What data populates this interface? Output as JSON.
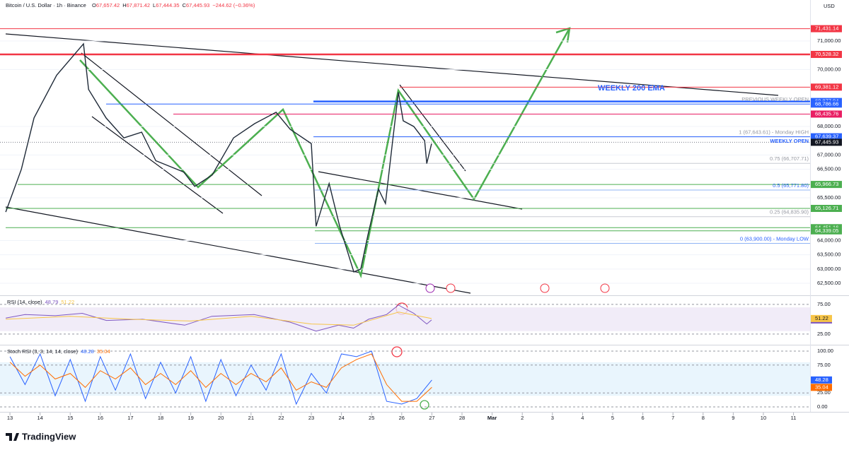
{
  "header": {
    "symbol": "Bitcoin / U.S. Dollar · 1h · Binance",
    "ohlc": [
      {
        "label": "O",
        "value": "67,657.42"
      },
      {
        "label": "H",
        "value": "67,871.42"
      },
      {
        "label": "L",
        "value": "67,444.35"
      },
      {
        "label": "C",
        "value": "67,445.93"
      }
    ],
    "change": "−244.62 (−0.36%)",
    "currency": "USD"
  },
  "chart_data": [
    {
      "type": "line",
      "x_labels": [
        {
          "value": 0,
          "label": "13"
        },
        {
          "value": 1,
          "label": "14"
        },
        {
          "value": 2,
          "label": "15"
        },
        {
          "value": 3,
          "label": "16"
        },
        {
          "value": 4,
          "label": "17"
        },
        {
          "value": 5,
          "label": "18"
        },
        {
          "value": 6,
          "label": "19"
        },
        {
          "value": 7,
          "label": "20"
        },
        {
          "value": 8,
          "label": "21"
        },
        {
          "value": 9,
          "label": "22"
        },
        {
          "value": 10,
          "label": "23"
        },
        {
          "value": 11,
          "label": "24"
        },
        {
          "value": 12,
          "label": "25"
        },
        {
          "value": 13,
          "label": "26"
        },
        {
          "value": 14,
          "label": "27"
        },
        {
          "value": 15,
          "label": "28"
        },
        {
          "value": 16,
          "label": "Mar"
        },
        {
          "value": 17,
          "label": "2"
        },
        {
          "value": 18,
          "label": "3"
        },
        {
          "value": 19,
          "label": "4"
        },
        {
          "value": 20,
          "label": "5"
        },
        {
          "value": 21,
          "label": "6"
        },
        {
          "value": 22,
          "label": "7"
        },
        {
          "value": 23,
          "label": "8"
        },
        {
          "value": 24,
          "label": "9"
        },
        {
          "value": 25,
          "label": "10"
        },
        {
          "value": 26,
          "label": "11"
        }
      ],
      "xlim": [
        -0.33,
        26.55
      ],
      "ylim": [
        62079,
        72437
      ],
      "yticks": [
        {
          "value": 71000,
          "label": "71,000.00"
        },
        {
          "value": 70000,
          "label": "70,000.00"
        },
        {
          "value": 68000,
          "label": "68,000.00"
        },
        {
          "value": 67000,
          "label": "67,000.00"
        },
        {
          "value": 66500,
          "label": "66,500.00"
        },
        {
          "value": 65500,
          "label": "65,500.00"
        },
        {
          "value": 64000,
          "label": "64,000.00"
        },
        {
          "value": 63500,
          "label": "63,500.00"
        },
        {
          "value": 63000,
          "label": "63,000.00"
        },
        {
          "value": 62500,
          "label": "62,500.00"
        }
      ],
      "series": [
        {
          "name": "BTCUSD",
          "color": "#1f2a38",
          "x": [
            -0.14,
            0.38,
            0.8,
            1.55,
            2.44,
            2.61,
            3.19,
            3.78,
            4.37,
            4.84,
            5.77,
            6.13,
            6.71,
            7.42,
            8.12,
            8.83,
            9.3,
            10.0,
            10.16,
            10.59,
            10.94,
            11.41,
            11.64,
            11.88,
            12.23,
            12.46,
            12.7,
            12.89,
            13.05,
            13.4,
            13.76,
            13.83,
            13.99
          ],
          "values": [
            65000,
            66500,
            68300,
            69800,
            70900,
            69300,
            68300,
            67600,
            67800,
            66800,
            66400,
            65900,
            66300,
            67600,
            68100,
            68500,
            67900,
            67400,
            64500,
            66000,
            64500,
            62900,
            63000,
            64200,
            65800,
            65300,
            67500,
            69200,
            68200,
            68000,
            67500,
            66700,
            67400
          ]
        }
      ],
      "levels": [
        {
          "label": "71,431.14",
          "value": 71431.14,
          "color": "#f23645"
        },
        {
          "label": "70,528.32",
          "value": 70528.32,
          "color": "#f23645"
        },
        {
          "label": "69,381.12",
          "value": 69381.12,
          "color": "#f23645"
        },
        {
          "label": "68,877.94",
          "value": 68877.94,
          "color": "#2962ff"
        },
        {
          "label": "68,786.66",
          "value": 68786.66,
          "color": "#2962ff"
        },
        {
          "label": "68,435.76",
          "value": 68435.76,
          "color": "#e91e63"
        },
        {
          "label": "67,639.37",
          "value": 67639.37,
          "color": "#2962ff"
        },
        {
          "label": "67,445.93",
          "value": 67445.93,
          "color": "#131722"
        },
        {
          "label": "65,966.73",
          "value": 65966.73,
          "color": "#4caf50"
        },
        {
          "label": "65,126.71",
          "value": 65126.71,
          "color": "#4caf50"
        },
        {
          "label": "64,451.16",
          "value": 64451.16,
          "color": "#4caf50"
        },
        {
          "label": "64,339.05",
          "value": 64339.05,
          "color": "#4caf50"
        }
      ],
      "fib_levels": [
        {
          "label": "1 (67,643.61) - Monday HIGH",
          "value": 67643.61
        },
        {
          "label": "0.75 (66,707.71)",
          "value": 66707.71
        },
        {
          "label": "0.5 (65,771.80)",
          "value": 65771.8
        },
        {
          "label": "0.25 (64,835.90)",
          "value": 64835.9
        },
        {
          "label": "0 (63,900.00) - Monday LOW",
          "value": 63900
        }
      ],
      "annotations": [
        "WEEKLY 200 EMA",
        "PREVIOUS WEEKLY OPEN",
        "WEEKLY OPEN"
      ]
    },
    {
      "type": "line",
      "title": "RSI (14, close)",
      "legend_values": [
        "48.79",
        "51.22"
      ],
      "xlim": [
        -0.33,
        26.55
      ],
      "ylim": [
        7,
        88
      ],
      "yticks": [
        {
          "value": 75,
          "label": "75.00"
        },
        {
          "value": 25,
          "label": "25.00"
        }
      ],
      "band": [
        30,
        70
      ],
      "series": [
        {
          "name": "RSI",
          "color": "#7e57c2",
          "x": [
            -0.14,
            0.5,
            1.5,
            2.4,
            3.2,
            4.4,
            5.8,
            6.7,
            8.1,
            9.3,
            10.16,
            10.9,
            11.4,
            11.9,
            12.5,
            12.89,
            13.4,
            13.83,
            13.99
          ],
          "values": [
            52,
            58,
            56,
            60,
            48,
            50,
            40,
            55,
            58,
            45,
            30,
            40,
            35,
            50,
            58,
            74,
            60,
            42,
            48.79
          ]
        },
        {
          "name": "RSI MA",
          "color": "#f7c548",
          "x": [
            -0.14,
            2,
            4,
            6,
            8,
            10,
            11.4,
            12.9,
            13.99
          ],
          "values": [
            50,
            55,
            50,
            47,
            55,
            42,
            40,
            62,
            51.22
          ]
        }
      ]
    },
    {
      "type": "line",
      "title": "Stoch RSI (3, 3, 14, 14, close)",
      "legend_values": [
        "48.28",
        "35.04"
      ],
      "xlim": [
        -0.33,
        26.55
      ],
      "ylim": [
        -7.6,
        108.9
      ],
      "yticks": [
        {
          "value": 100,
          "label": "100.00"
        },
        {
          "value": 75,
          "label": "75.00"
        },
        {
          "value": 25,
          "label": "25.00"
        },
        {
          "value": 0,
          "label": "0.00"
        }
      ],
      "band": [
        20,
        80
      ],
      "series": [
        {
          "name": "K",
          "color": "#2962ff",
          "x": [
            0,
            0.5,
            1,
            1.5,
            2,
            2.5,
            3,
            3.5,
            4,
            4.5,
            5,
            5.5,
            6,
            6.5,
            7,
            7.5,
            8,
            8.5,
            9,
            9.5,
            10,
            10.5,
            11,
            11.5,
            12,
            12.5,
            13,
            13.5,
            14
          ],
          "values": [
            90,
            40,
            95,
            20,
            85,
            10,
            90,
            30,
            95,
            15,
            80,
            25,
            90,
            10,
            85,
            20,
            75,
            30,
            95,
            5,
            60,
            25,
            95,
            90,
            100,
            10,
            5,
            15,
            48.28
          ]
        },
        {
          "name": "D",
          "color": "#ff6d00",
          "x": [
            0,
            0.5,
            1,
            1.5,
            2,
            2.5,
            3,
            3.5,
            4,
            4.5,
            5,
            5.5,
            6,
            6.5,
            7,
            7.5,
            8,
            8.5,
            9,
            9.5,
            10,
            10.5,
            11,
            11.5,
            12,
            12.5,
            13,
            13.5,
            14
          ],
          "values": [
            80,
            55,
            75,
            50,
            60,
            35,
            65,
            50,
            70,
            40,
            60,
            40,
            65,
            35,
            60,
            40,
            60,
            45,
            70,
            30,
            45,
            35,
            70,
            85,
            95,
            40,
            10,
            10,
            35.04
          ]
        }
      ]
    }
  ],
  "footer": {
    "brand": "TradingView"
  }
}
